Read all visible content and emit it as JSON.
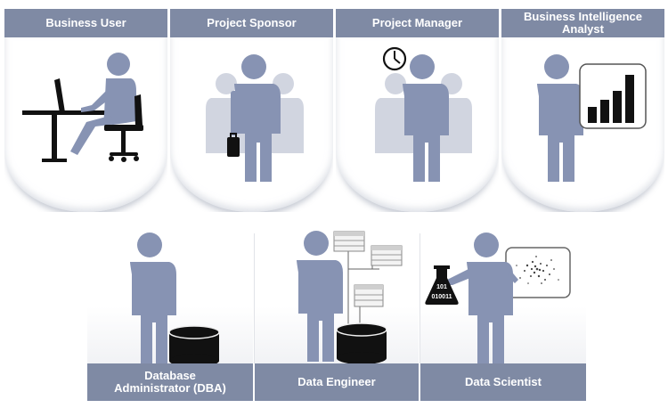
{
  "roles_top": [
    {
      "key": "business-user",
      "label": "Business User"
    },
    {
      "key": "project-sponsor",
      "label": "Project Sponsor"
    },
    {
      "key": "project-manager",
      "label": "Project Manager"
    },
    {
      "key": "bi-analyst",
      "label": "Business Intelligence Analyst"
    }
  ],
  "roles_bottom": [
    {
      "key": "dba",
      "label": "Database Administrator (DBA)"
    },
    {
      "key": "data-engineer",
      "label": "Data Engineer"
    },
    {
      "key": "data-scientist",
      "label": "Data Scientist"
    }
  ],
  "flask_text": {
    "line1": "101",
    "line2": "010011"
  },
  "colors": {
    "label_bg": "#7f8aa4",
    "figure": "#8793b3",
    "figure_ghost": "#c3c9d8",
    "black": "#111111"
  },
  "icons": {
    "clock": "clock-icon",
    "chart": "bar-chart-icon",
    "database": "database-icon",
    "flask": "flask-icon",
    "briefcase": "briefcase-icon",
    "desk": "desk-icon",
    "chair": "chair-icon"
  }
}
